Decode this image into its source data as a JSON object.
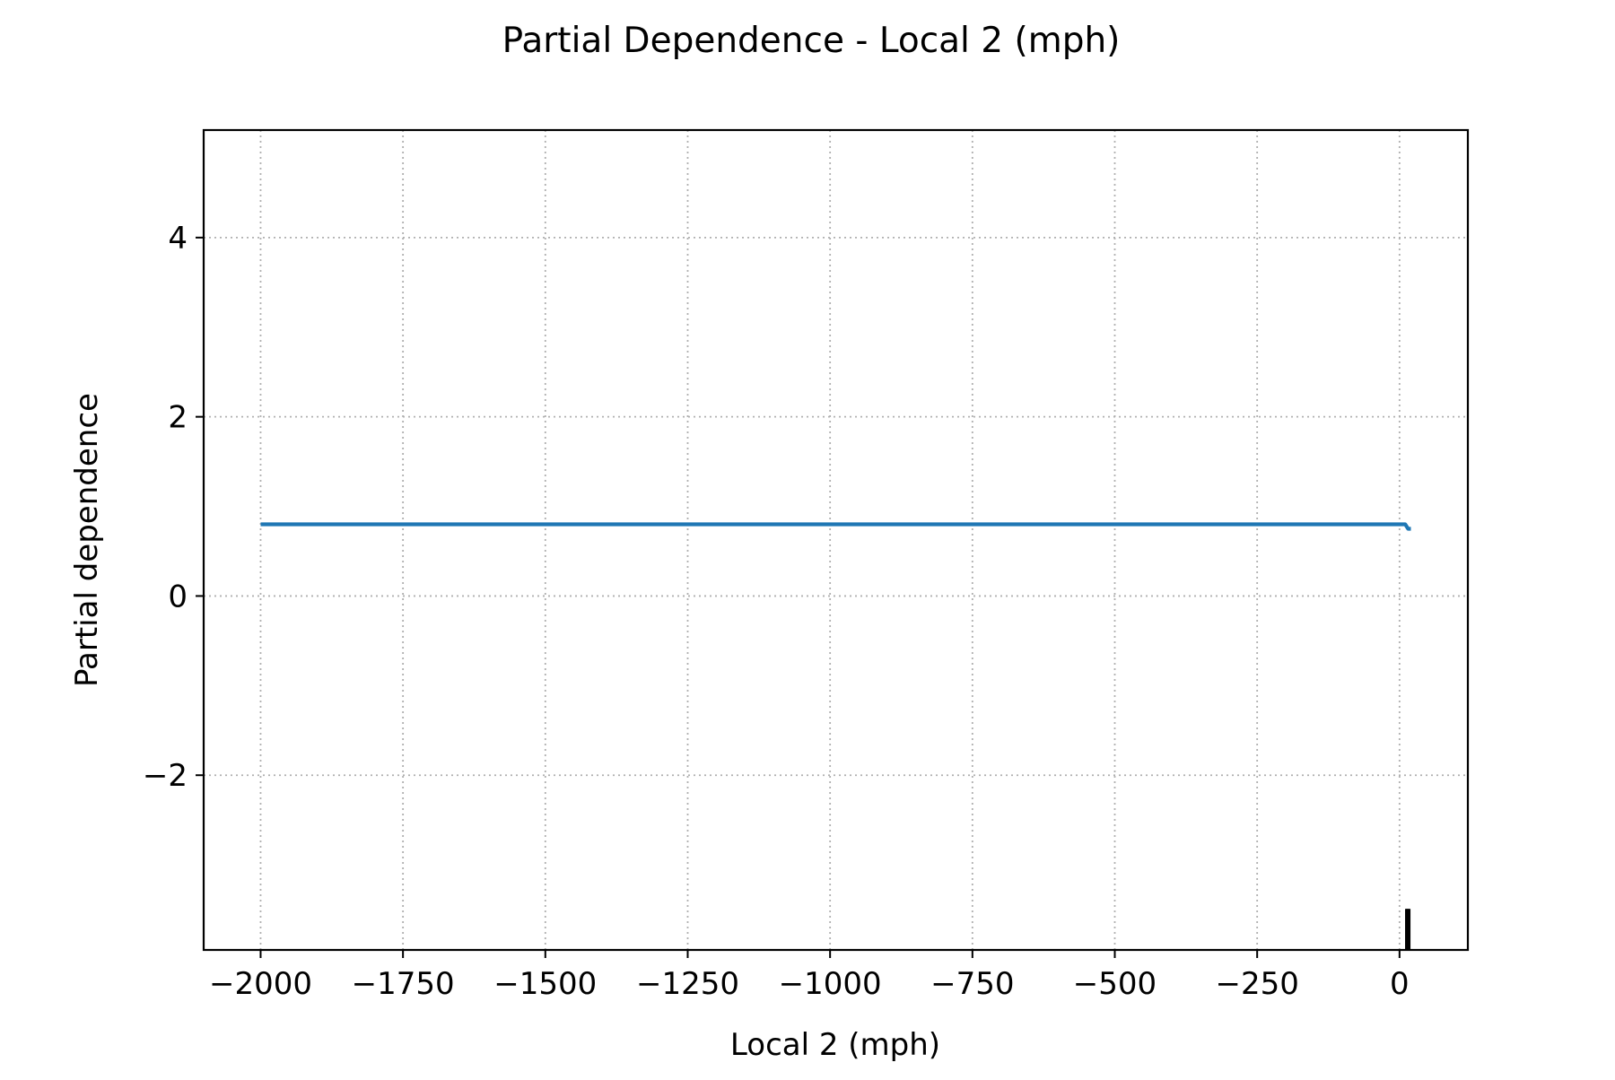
{
  "chart_data": {
    "type": "line",
    "title": "Partial Dependence - Local 2 (mph)",
    "xlabel": "Local 2 (mph)",
    "ylabel": "Partial dependence",
    "xlim": [
      -2100,
      120
    ],
    "ylim": [
      -3.95,
      5.2
    ],
    "x_ticks": [
      -2000,
      -1750,
      -1500,
      -1250,
      -1000,
      -750,
      -500,
      -250,
      0
    ],
    "x_tick_labels": [
      "−2000",
      "−1750",
      "−1500",
      "−1250",
      "−1000",
      "−750",
      "−500",
      "−250",
      "0"
    ],
    "y_ticks": [
      -2,
      0,
      2,
      4
    ],
    "y_tick_labels": [
      "−2",
      "0",
      "2",
      "4"
    ],
    "grid": true,
    "grid_style": "dotted",
    "legend": "none",
    "series": [
      {
        "color": "#1f77b4",
        "x": [
          -2000,
          -1000,
          0,
          10,
          15,
          20
        ],
        "y": [
          0.8,
          0.8,
          0.8,
          0.8,
          0.75,
          0.75
        ]
      }
    ],
    "rug": {
      "color": "#000000",
      "x": [
        11,
        12,
        13,
        14,
        15,
        16,
        17,
        18
      ]
    }
  }
}
